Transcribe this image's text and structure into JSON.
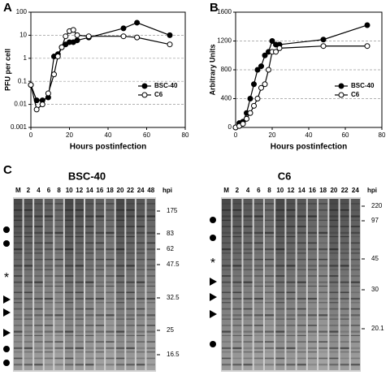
{
  "chart_data": [
    {
      "type": "line",
      "panel_label": "A",
      "xlabel": "Hours postinfection",
      "ylabel": "PFU per cell",
      "log_y": true,
      "grid": true,
      "legend": "right",
      "x": [
        0,
        3,
        6,
        9,
        12,
        14,
        16,
        18,
        20,
        22,
        24,
        30,
        48,
        55,
        72
      ],
      "series": [
        {
          "name": "BSC-40",
          "color": "#000000",
          "marker": "filled",
          "values": [
            0.07,
            0.015,
            0.015,
            0.02,
            1.2,
            1.5,
            3,
            4,
            5,
            5,
            6,
            8,
            20,
            35,
            10
          ]
        },
        {
          "name": "C6",
          "color": "#000000",
          "marker": "open",
          "values": [
            0.07,
            0.006,
            0.01,
            0.03,
            0.2,
            1.2,
            3,
            9,
            15,
            17,
            10,
            9,
            9,
            8,
            4
          ]
        }
      ],
      "xlim": [
        0,
        80
      ],
      "xticks": [
        0,
        20,
        40,
        60,
        80
      ],
      "ylim": [
        0.001,
        100
      ],
      "yticks": [
        0.001,
        0.01,
        0.1,
        1,
        10,
        100
      ]
    },
    {
      "type": "line",
      "panel_label": "B",
      "xlabel": "Hours postinfection",
      "ylabel": "Arbitrary Units",
      "log_y": false,
      "grid": true,
      "legend": "right",
      "x": [
        0,
        2,
        4,
        6,
        8,
        10,
        12,
        14,
        16,
        18,
        20,
        22,
        24,
        48,
        72
      ],
      "series": [
        {
          "name": "BSC-40",
          "color": "#000000",
          "marker": "filled",
          "values": [
            0,
            60,
            80,
            200,
            400,
            600,
            800,
            850,
            1000,
            1050,
            1200,
            1150,
            1150,
            1220,
            1420
          ]
        },
        {
          "name": "C6",
          "color": "#000000",
          "marker": "open",
          "values": [
            0,
            20,
            50,
            120,
            200,
            300,
            400,
            550,
            600,
            800,
            1050,
            1050,
            1100,
            1130,
            1130
          ]
        }
      ],
      "xlim": [
        0,
        80
      ],
      "xticks": [
        0,
        20,
        40,
        60,
        80
      ],
      "ylim": [
        0,
        1600
      ],
      "yticks": [
        0,
        400,
        800,
        1200,
        1600
      ]
    }
  ],
  "panel_c": {
    "label": "C",
    "asterisk": "*",
    "unit": "hpi",
    "gels": [
      {
        "title": "BSC-40",
        "lanes": [
          "M",
          "2",
          "4",
          "6",
          "8",
          "10",
          "12",
          "14",
          "16",
          "18",
          "20",
          "22",
          "24",
          "48"
        ],
        "markers": [
          "175",
          "83",
          "62",
          "47.5",
          "32.5",
          "25",
          "16.5"
        ]
      },
      {
        "title": "C6",
        "lanes": [
          "M",
          "2",
          "4",
          "6",
          "8",
          "10",
          "12",
          "14",
          "16",
          "18",
          "20",
          "22",
          "24"
        ],
        "markers": [
          "220",
          "97",
          "45",
          "30",
          "20.1"
        ]
      }
    ]
  }
}
